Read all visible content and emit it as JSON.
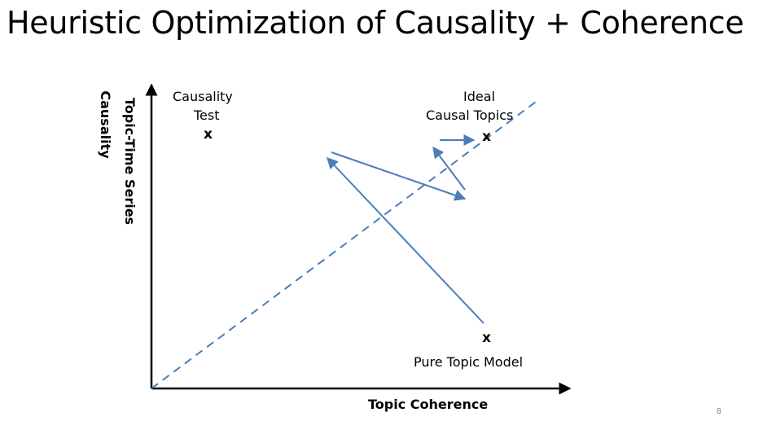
{
  "slide": {
    "title": "Heuristic Optimization of Causality + Coherence",
    "page_number": "8"
  },
  "diagram": {
    "y_axis_label_line1": "Topic-Time Series",
    "y_axis_label_line2": "Causality",
    "x_axis_label": "Topic Coherence",
    "points": {
      "causality_test": {
        "label_line1": "Causality",
        "label_line2": "Test",
        "mark": "x"
      },
      "ideal": {
        "label_line1": "Ideal",
        "label_line2": "Causal Topics",
        "mark": "x"
      },
      "pure_topic_model": {
        "label": "Pure Topic Model",
        "mark": "x"
      }
    },
    "colors": {
      "arrow": "#4a7ebb",
      "diagonal": "#4a7ebb",
      "axis": "#000000"
    }
  }
}
